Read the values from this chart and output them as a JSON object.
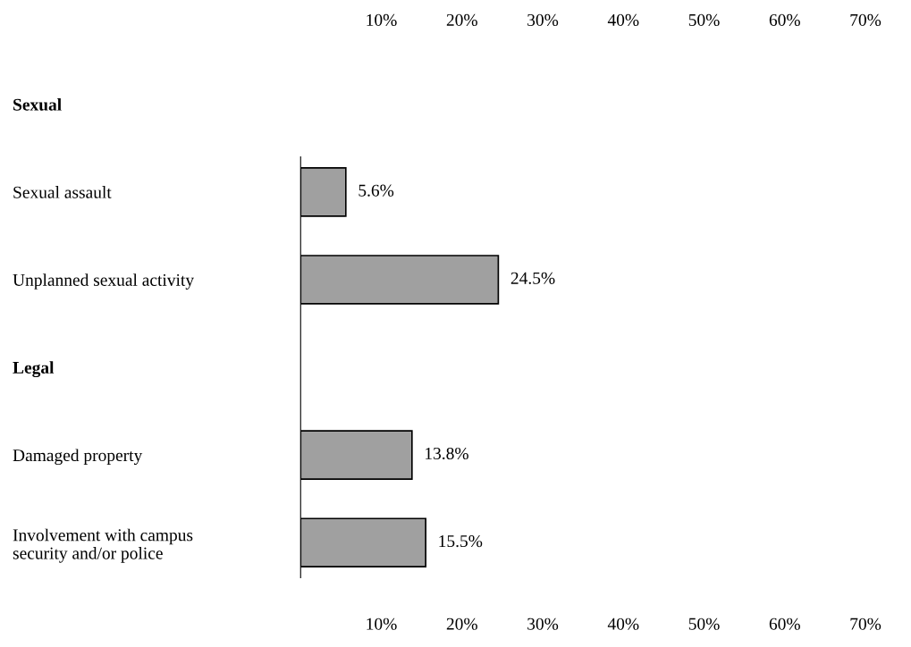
{
  "chart_data": {
    "type": "bar",
    "orientation": "horizontal",
    "categories": [
      "Sexual",
      "Sexual assault",
      "Unplanned sexual activity",
      "Legal",
      "Damaged property",
      "Involvement with campus\nsecurity and/or police"
    ],
    "values": [
      null,
      5.6,
      24.5,
      null,
      13.8,
      15.5
    ],
    "value_labels": [
      null,
      "5.6%",
      "24.5%",
      null,
      "13.8%",
      "15.5%"
    ],
    "color": "#a0a0a0",
    "xlim": [
      0,
      70
    ],
    "xticks": [
      {
        "value": 10,
        "label": "10%"
      },
      {
        "value": 20,
        "label": "20%"
      },
      {
        "value": 30,
        "label": "30%"
      },
      {
        "value": 40,
        "label": "40%"
      },
      {
        "value": 50,
        "label": "50%"
      },
      {
        "value": 60,
        "label": "60%"
      },
      {
        "value": 70,
        "label": "70%"
      }
    ],
    "x2lim": [
      0,
      70
    ],
    "x2ticks": [
      {
        "value": 10,
        "label": "10%"
      },
      {
        "value": 20,
        "label": "20%"
      },
      {
        "value": 30,
        "label": "30%"
      },
      {
        "value": 40,
        "label": "40%"
      },
      {
        "value": 50,
        "label": "50%"
      },
      {
        "value": 60,
        "label": "60%"
      },
      {
        "value": 70,
        "label": "70%"
      }
    ],
    "grid": false,
    "legend": false
  }
}
